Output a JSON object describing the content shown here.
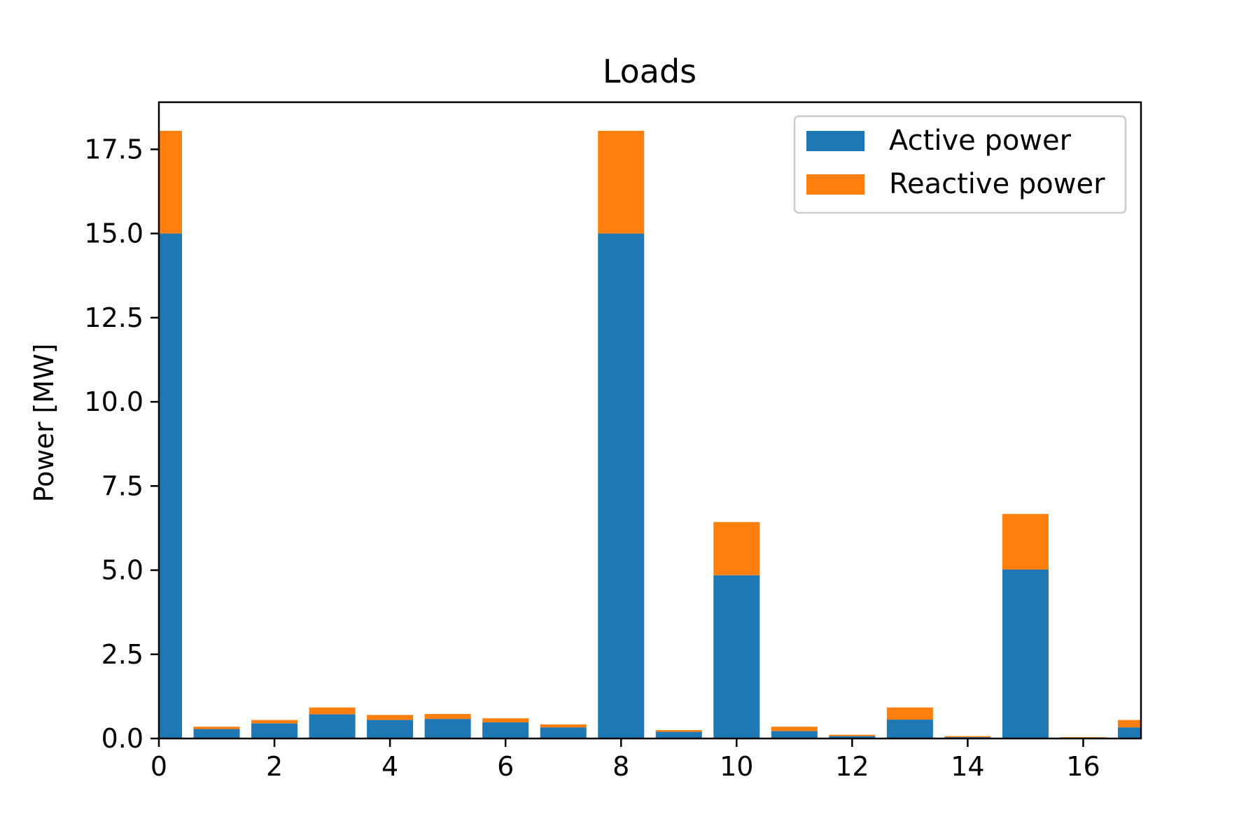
{
  "chart_data": {
    "type": "bar",
    "stacked": true,
    "title": "Loads",
    "xlabel": "",
    "ylabel": "Power [MW]",
    "x": [
      0,
      1,
      2,
      3,
      4,
      5,
      6,
      7,
      8,
      9,
      10,
      11,
      12,
      13,
      14,
      15,
      16,
      17
    ],
    "xlim": [
      0,
      17
    ],
    "ylim": [
      0,
      18.9
    ],
    "xticks": [
      0,
      2,
      4,
      6,
      8,
      10,
      12,
      14,
      16
    ],
    "xtick_labels": [
      "0",
      "2",
      "4",
      "6",
      "8",
      "10",
      "12",
      "14",
      "16"
    ],
    "yticks": [
      0,
      2.5,
      5,
      7.5,
      10,
      12.5,
      15,
      17.5
    ],
    "ytick_labels": [
      "0.0",
      "2.5",
      "5.0",
      "7.5",
      "10.0",
      "12.5",
      "15.0",
      "17.5"
    ],
    "grid": false,
    "legend_position": "top-right",
    "series": [
      {
        "name": "Active power",
        "color": "#1f77b4",
        "values": [
          15.0,
          0.28,
          0.45,
          0.72,
          0.55,
          0.58,
          0.48,
          0.33,
          15.0,
          0.2,
          4.85,
          0.22,
          0.07,
          0.56,
          0.04,
          5.02,
          0.02,
          0.33
        ]
      },
      {
        "name": "Reactive power",
        "color": "#ff7f0e",
        "values": [
          3.05,
          0.07,
          0.1,
          0.2,
          0.15,
          0.15,
          0.12,
          0.09,
          3.05,
          0.05,
          1.58,
          0.13,
          0.04,
          0.36,
          0.03,
          1.65,
          0.02,
          0.22
        ]
      }
    ]
  }
}
